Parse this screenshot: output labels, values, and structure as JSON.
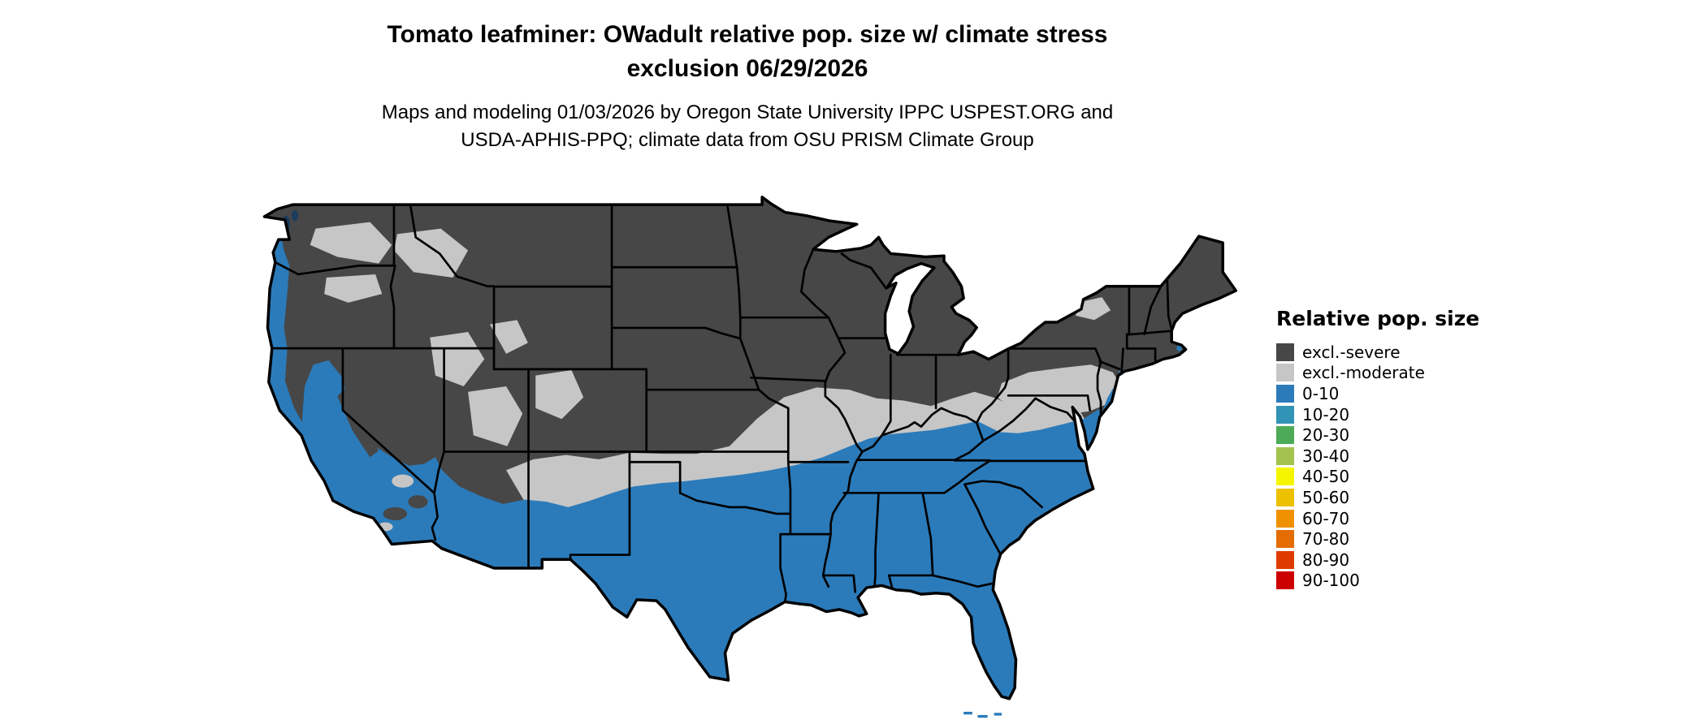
{
  "title": {
    "line1": "Tomato leafminer: OWadult relative pop. size w/ climate stress",
    "line2": "exclusion 06/29/2026"
  },
  "subtitle": {
    "line1": "Maps and modeling 01/03/2026 by Oregon State University IPPC USPEST.ORG and",
    "line2": "USDA-APHIS-PPQ; climate data from OSU PRISM Climate Group"
  },
  "legend": {
    "title": "Relative pop. size",
    "items": [
      {
        "label": "excl.-severe",
        "color": "#474747"
      },
      {
        "label": "excl.-moderate",
        "color": "#c6c6c6"
      },
      {
        "label": "0-10",
        "color": "#2b7bba"
      },
      {
        "label": "10-20",
        "color": "#3193b5"
      },
      {
        "label": "20-30",
        "color": "#4dab58"
      },
      {
        "label": "30-40",
        "color": "#a3c34e"
      },
      {
        "label": "40-50",
        "color": "#f5f500"
      },
      {
        "label": "50-60",
        "color": "#edc000"
      },
      {
        "label": "60-70",
        "color": "#ef9100"
      },
      {
        "label": "70-80",
        "color": "#e56c00"
      },
      {
        "label": "80-90",
        "color": "#df3b00"
      },
      {
        "label": "90-100",
        "color": "#cd0000"
      }
    ]
  },
  "map": {
    "region": "Continental United States",
    "colors": {
      "excl_severe": "#474747",
      "excl_moderate": "#c6c6c6",
      "pop_0_10": "#2b7bba",
      "water_detail": "#1c3c5e",
      "border": "#000000",
      "background": "#ffffff"
    },
    "regions": {
      "excl_severe": "northern and mountain interior US",
      "excl_moderate": "transition band across central US, NW interior and mid-Atlantic",
      "pop_0_10": "southern US, Gulf and Atlantic coastal plain, Pacific coast and California valleys"
    }
  }
}
